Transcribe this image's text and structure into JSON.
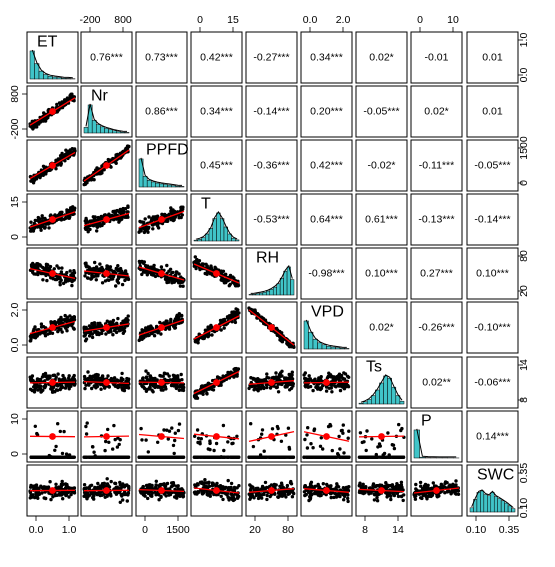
{
  "chart_data": {
    "type": "scatter-matrix",
    "variables": [
      "ET",
      "Nr",
      "PPFD",
      "T",
      "RH",
      "VPD",
      "Ts",
      "P",
      "SWC"
    ],
    "correlations": [
      [
        "",
        "0.76***",
        "0.73***",
        "0.42***",
        "-0.27***",
        "0.34***",
        "0.02*",
        "-0.01",
        "0.01"
      ],
      [
        "",
        "",
        "0.86***",
        "0.34***",
        "-0.14***",
        "0.20***",
        "-0.05***",
        "0.02*",
        "0.01"
      ],
      [
        "",
        "",
        "",
        "0.45***",
        "-0.36***",
        "0.42***",
        "-0.02*",
        "-0.11***",
        "-0.05***"
      ],
      [
        "",
        "",
        "",
        "",
        "-0.53***",
        "0.64***",
        "0.61***",
        "-0.13***",
        "-0.14***"
      ],
      [
        "",
        "",
        "",
        "",
        "",
        "-0.98***",
        "0.10***",
        "0.27***",
        "0.10***"
      ],
      [
        "",
        "",
        "",
        "",
        "",
        "",
        "0.02*",
        "-0.26***",
        "-0.10***"
      ],
      [
        "",
        "",
        "",
        "",
        "",
        "",
        "",
        "0.02**",
        "-0.06***"
      ],
      [
        "",
        "",
        "",
        "",
        "",
        "",
        "",
        "",
        "0.14***"
      ],
      [
        "",
        "",
        "",
        "",
        "",
        "",
        "",
        "",
        ""
      ]
    ],
    "top_axis_ticks": [
      {
        "col": 1,
        "labels": [
          "-200",
          "800"
        ]
      },
      {
        "col": 3,
        "labels": [
          "0",
          "15"
        ]
      },
      {
        "col": 5,
        "labels": [
          "0.0",
          "2.0"
        ]
      },
      {
        "col": 7,
        "labels": [
          "0",
          "10"
        ]
      }
    ],
    "bottom_axis_ticks": [
      {
        "col": 0,
        "labels": [
          "0.0",
          "1.0"
        ]
      },
      {
        "col": 2,
        "labels": [
          "0",
          "1500"
        ]
      },
      {
        "col": 4,
        "labels": [
          "20",
          "80"
        ]
      },
      {
        "col": 6,
        "labels": [
          "8",
          "14"
        ]
      },
      {
        "col": 8,
        "labels": [
          "0.10",
          "0.35"
        ]
      }
    ],
    "left_axis_ticks": [
      {
        "row": 1,
        "labels": [
          "-200",
          "800"
        ]
      },
      {
        "row": 3,
        "labels": [
          "0",
          "15"
        ]
      },
      {
        "row": 5,
        "labels": [
          "0.0",
          "2.0"
        ]
      },
      {
        "row": 7,
        "labels": [
          "0",
          "10"
        ]
      }
    ],
    "right_axis_ticks": [
      {
        "row": 0,
        "labels": [
          "0.0",
          "1.0"
        ]
      },
      {
        "row": 2,
        "labels": [
          "0",
          "1500"
        ]
      },
      {
        "row": 4,
        "labels": [
          "20",
          "80"
        ]
      },
      {
        "row": 6,
        "labels": [
          "8",
          "14"
        ]
      },
      {
        "row": 8,
        "labels": [
          "0.10",
          "0.35"
        ]
      }
    ],
    "histogram_color": "#40c4c8",
    "fit_color": "#ff0000",
    "point_color": "#000000"
  }
}
